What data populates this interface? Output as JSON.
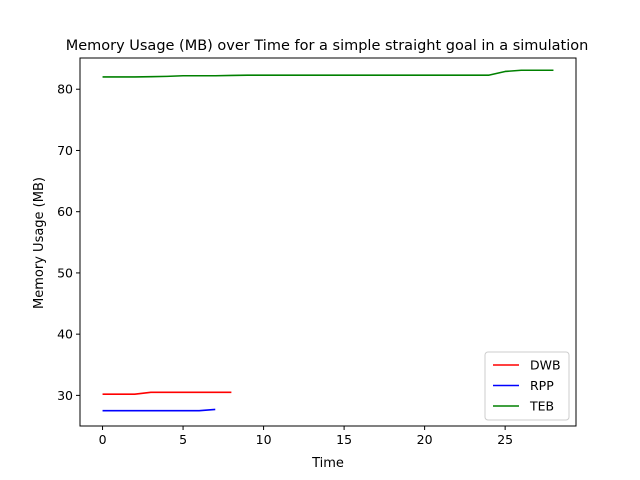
{
  "chart_data": {
    "type": "line",
    "title": "Memory Usage (MB) over Time for a simple straight goal in a simulation",
    "xlabel": "Time",
    "ylabel": "Memory Usage (MB)",
    "xlim": [
      -1.4,
      29.4
    ],
    "ylim": [
      25.0,
      85.1
    ],
    "xticks": [
      0,
      5,
      10,
      15,
      20,
      25
    ],
    "yticks": [
      30,
      40,
      50,
      60,
      70,
      80
    ],
    "grid": false,
    "legend_position": "lower right",
    "series": [
      {
        "name": "DWB",
        "color": "#ff0000",
        "x": [
          0,
          1,
          2,
          3,
          4,
          5,
          6,
          7,
          8
        ],
        "y": [
          30.2,
          30.2,
          30.2,
          30.5,
          30.5,
          30.5,
          30.5,
          30.5,
          30.5
        ]
      },
      {
        "name": "RPP",
        "color": "#0000ff",
        "x": [
          0,
          1,
          2,
          3,
          4,
          5,
          6,
          7
        ],
        "y": [
          27.5,
          27.5,
          27.5,
          27.5,
          27.5,
          27.5,
          27.5,
          27.7
        ]
      },
      {
        "name": "TEB",
        "color": "#008000",
        "x": [
          0,
          1,
          2,
          3,
          4,
          5,
          6,
          7,
          8,
          9,
          10,
          11,
          12,
          13,
          14,
          15,
          16,
          17,
          18,
          19,
          20,
          21,
          22,
          23,
          24,
          25,
          26,
          27,
          28
        ],
        "y": [
          82.0,
          82.0,
          82.0,
          82.05,
          82.1,
          82.2,
          82.2,
          82.2,
          82.25,
          82.3,
          82.3,
          82.3,
          82.3,
          82.3,
          82.3,
          82.3,
          82.3,
          82.3,
          82.3,
          82.3,
          82.3,
          82.3,
          82.3,
          82.3,
          82.3,
          82.9,
          83.1,
          83.1,
          83.1
        ]
      }
    ]
  }
}
